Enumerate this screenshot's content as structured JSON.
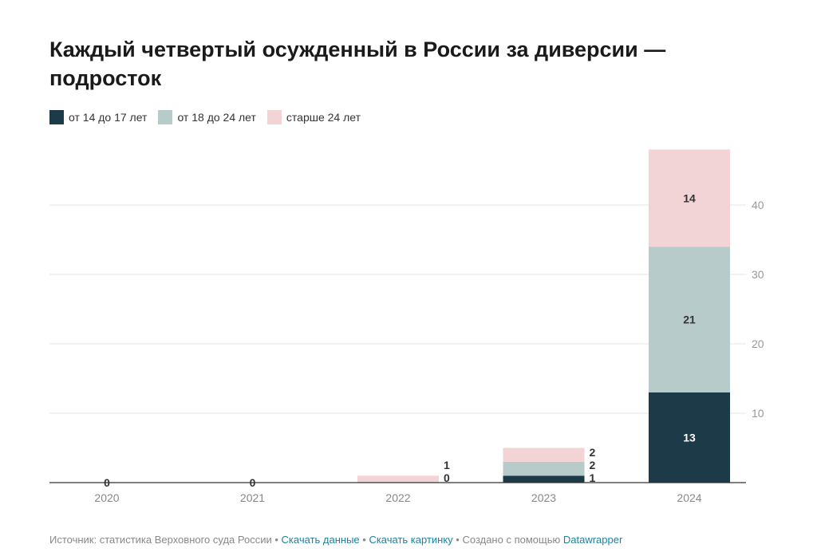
{
  "chart_data": {
    "type": "bar",
    "stacked": true,
    "title": "Каждый четвертый осужденный в России за диверсии — подросток",
    "categories": [
      "2020",
      "2021",
      "2022",
      "2023",
      "2024"
    ],
    "series": [
      {
        "name": "от 14 до 17 лет",
        "color": "#1c3a47",
        "values": [
          0,
          0,
          0,
          1,
          13
        ]
      },
      {
        "name": "от 18 до 24 лет",
        "color": "#b8cbcb",
        "values": [
          0,
          0,
          0,
          2,
          21
        ]
      },
      {
        "name": "старше 24 лет",
        "color": "#f2d4d7",
        "values": [
          0,
          0,
          1,
          2,
          14
        ]
      }
    ],
    "yticks": [
      10,
      20,
      30,
      40
    ],
    "ylim": [
      0,
      48
    ],
    "xlabel": "",
    "ylabel": "",
    "legend": "top-left",
    "grid": true
  },
  "footer": {
    "source": "Источник: статистика Верховного суда России",
    "download_data": "Скачать данные",
    "download_image": "Скачать картинку",
    "created": "Создано с помощью",
    "datawrapper": "Datawrapper",
    "sep": " • "
  }
}
